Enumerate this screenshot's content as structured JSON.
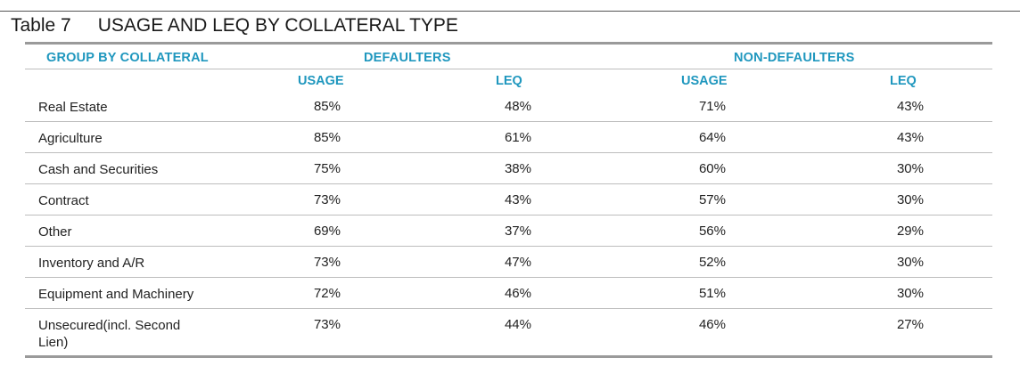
{
  "caption": {
    "label": "Table 7",
    "title": "USAGE AND LEQ BY COLLATERAL TYPE"
  },
  "headers": {
    "group": "GROUP BY COLLATERAL",
    "defaulters": "DEFAULTERS",
    "non_defaulters": "NON-DEFAULTERS"
  },
  "subheaders": {
    "def_usage": "USAGE",
    "def_leq": "LEQ",
    "nondef_usage": "USAGE",
    "nondef_leq": "LEQ"
  },
  "colors": {
    "header_accent": "#1f97be",
    "rule": "#9a9a9a"
  },
  "rows": [
    {
      "name": "Real Estate",
      "def_usage": "85%",
      "def_leq": "48%",
      "nondef_usage": "71%",
      "nondef_leq": "43%"
    },
    {
      "name": "Agriculture",
      "def_usage": "85%",
      "def_leq": "61%",
      "nondef_usage": "64%",
      "nondef_leq": "43%"
    },
    {
      "name": "Cash and Securities",
      "def_usage": "75%",
      "def_leq": "38%",
      "nondef_usage": "60%",
      "nondef_leq": "30%"
    },
    {
      "name": "Contract",
      "def_usage": "73%",
      "def_leq": "43%",
      "nondef_usage": "57%",
      "nondef_leq": "30%"
    },
    {
      "name": "Other",
      "def_usage": "69%",
      "def_leq": "37%",
      "nondef_usage": "56%",
      "nondef_leq": "29%"
    },
    {
      "name": "Inventory and A/R",
      "def_usage": "73%",
      "def_leq": "47%",
      "nondef_usage": "52%",
      "nondef_leq": "30%"
    },
    {
      "name": "Equipment and Machinery",
      "def_usage": "72%",
      "def_leq": "46%",
      "nondef_usage": "51%",
      "nondef_leq": "30%"
    },
    {
      "name": "Unsecured(incl. Second Lien)",
      "def_usage": "73%",
      "def_leq": "44%",
      "nondef_usage": "46%",
      "nondef_leq": "27%"
    }
  ]
}
